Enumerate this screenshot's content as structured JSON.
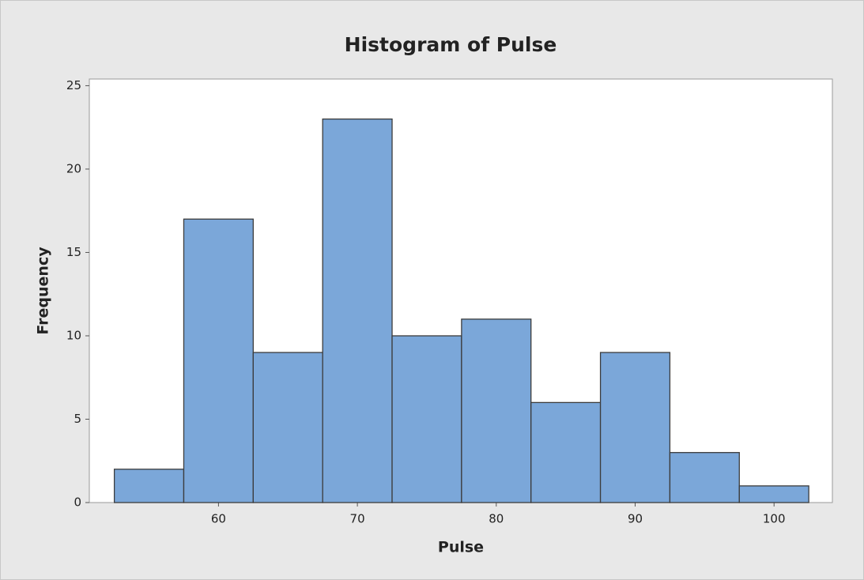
{
  "chart_data": {
    "type": "histogram",
    "title": "Histogram of Pulse",
    "xlabel": "Pulse",
    "ylabel": "Frequency",
    "bins": [
      52.5,
      57.5,
      62.5,
      67.5,
      72.5,
      77.5,
      82.5,
      87.5,
      92.5,
      97.5,
      102.5
    ],
    "values": [
      2,
      17,
      9,
      23,
      10,
      11,
      6,
      9,
      3,
      1
    ],
    "color": "#7ba7d9",
    "xlim": [
      50.7,
      104.2
    ],
    "xticks": [
      60,
      70,
      80,
      90,
      100
    ],
    "ylim": [
      0,
      25.4
    ],
    "yticks": [
      0,
      5,
      10,
      15,
      20,
      25
    ]
  }
}
